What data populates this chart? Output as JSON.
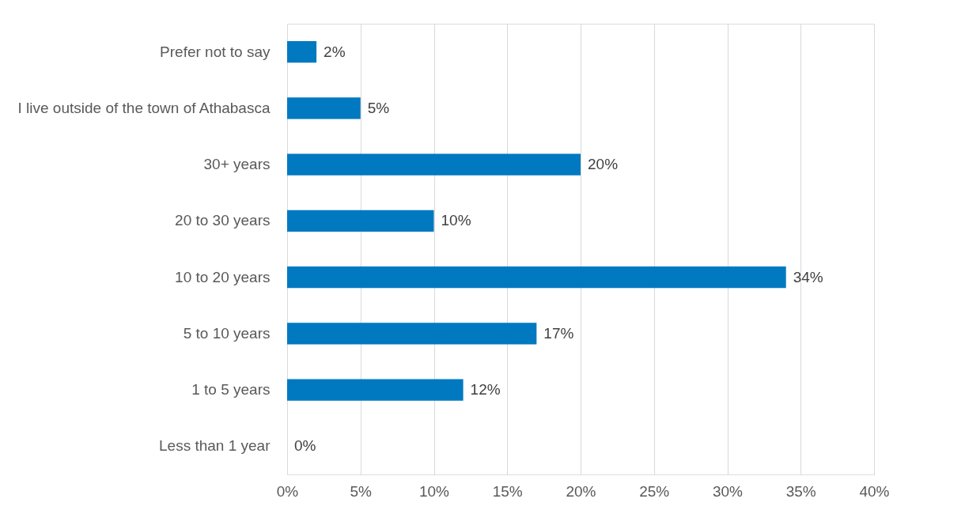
{
  "chart_data": {
    "type": "bar",
    "orientation": "horizontal",
    "categories": [
      "Prefer not to say",
      "I live outside of the town of Athabasca",
      "30+ years",
      "20 to 30 years",
      "10 to 20 years",
      "5 to 10 years",
      "1 to 5 years",
      "Less than 1 year"
    ],
    "values": [
      2,
      5,
      20,
      10,
      34,
      17,
      12,
      0
    ],
    "value_labels": [
      "2%",
      "5%",
      "20%",
      "10%",
      "34%",
      "17%",
      "12%",
      "0%"
    ],
    "color": "#0079c1",
    "xlim": [
      0,
      40
    ],
    "xticks": [
      {
        "value": 0,
        "label": "0%"
      },
      {
        "value": 5,
        "label": "5%"
      },
      {
        "value": 10,
        "label": "10%"
      },
      {
        "value": 15,
        "label": "15%"
      },
      {
        "value": 20,
        "label": "20%"
      },
      {
        "value": 25,
        "label": "25%"
      },
      {
        "value": 30,
        "label": "30%"
      },
      {
        "value": 35,
        "label": "35%"
      },
      {
        "value": 40,
        "label": "40%"
      }
    ],
    "grid": "x"
  }
}
